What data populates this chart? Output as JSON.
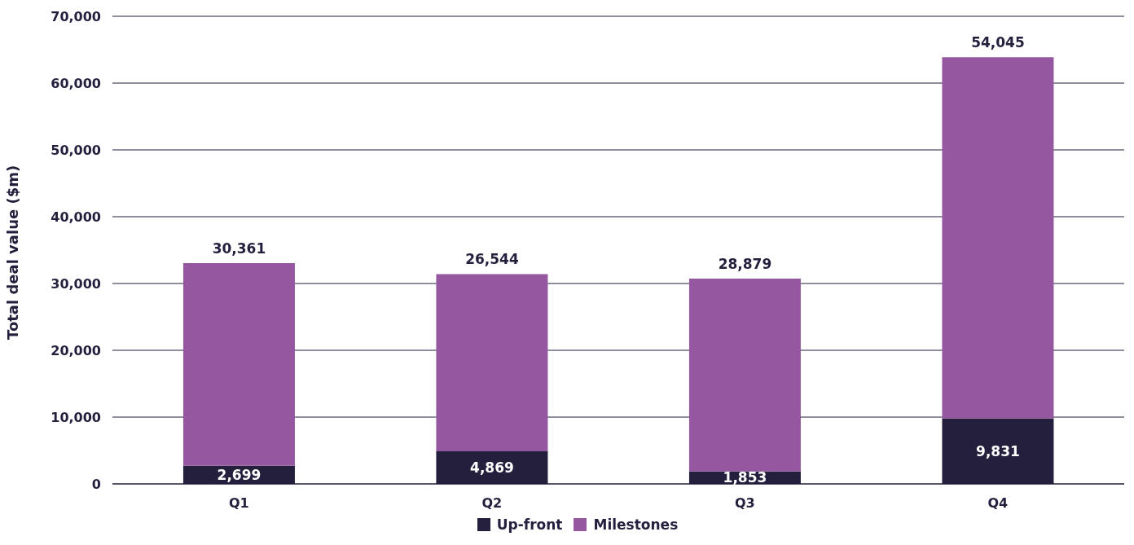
{
  "chart_data": {
    "type": "bar",
    "stacked": true,
    "ylabel": "Total deal value ($m)",
    "categories": [
      "Q1",
      "Q2",
      "Q3",
      "Q4"
    ],
    "series": [
      {
        "name": "Up-front",
        "color": "#231f3d",
        "values": [
          2699,
          4869,
          1853,
          9831
        ],
        "value_labels": [
          "2,699",
          "4,869",
          "1,853",
          "9,831"
        ]
      },
      {
        "name": "Milestones",
        "color": "#9558a0",
        "values": [
          30361,
          26544,
          28879,
          54045
        ],
        "value_labels": [
          "30,361",
          "26,544",
          "28,879",
          "54,045"
        ]
      }
    ],
    "ylim": [
      0,
      70000
    ],
    "yticks": [
      {
        "value": 0,
        "label": "0"
      },
      {
        "value": 10000,
        "label": "10,000"
      },
      {
        "value": 20000,
        "label": "20,000"
      },
      {
        "value": 30000,
        "label": "30,000"
      },
      {
        "value": 40000,
        "label": "40,000"
      },
      {
        "value": 50000,
        "label": "50,000"
      },
      {
        "value": 60000,
        "label": "60,000"
      },
      {
        "value": 70000,
        "label": "70,000"
      }
    ],
    "grid": "y",
    "legend": "bottom"
  }
}
